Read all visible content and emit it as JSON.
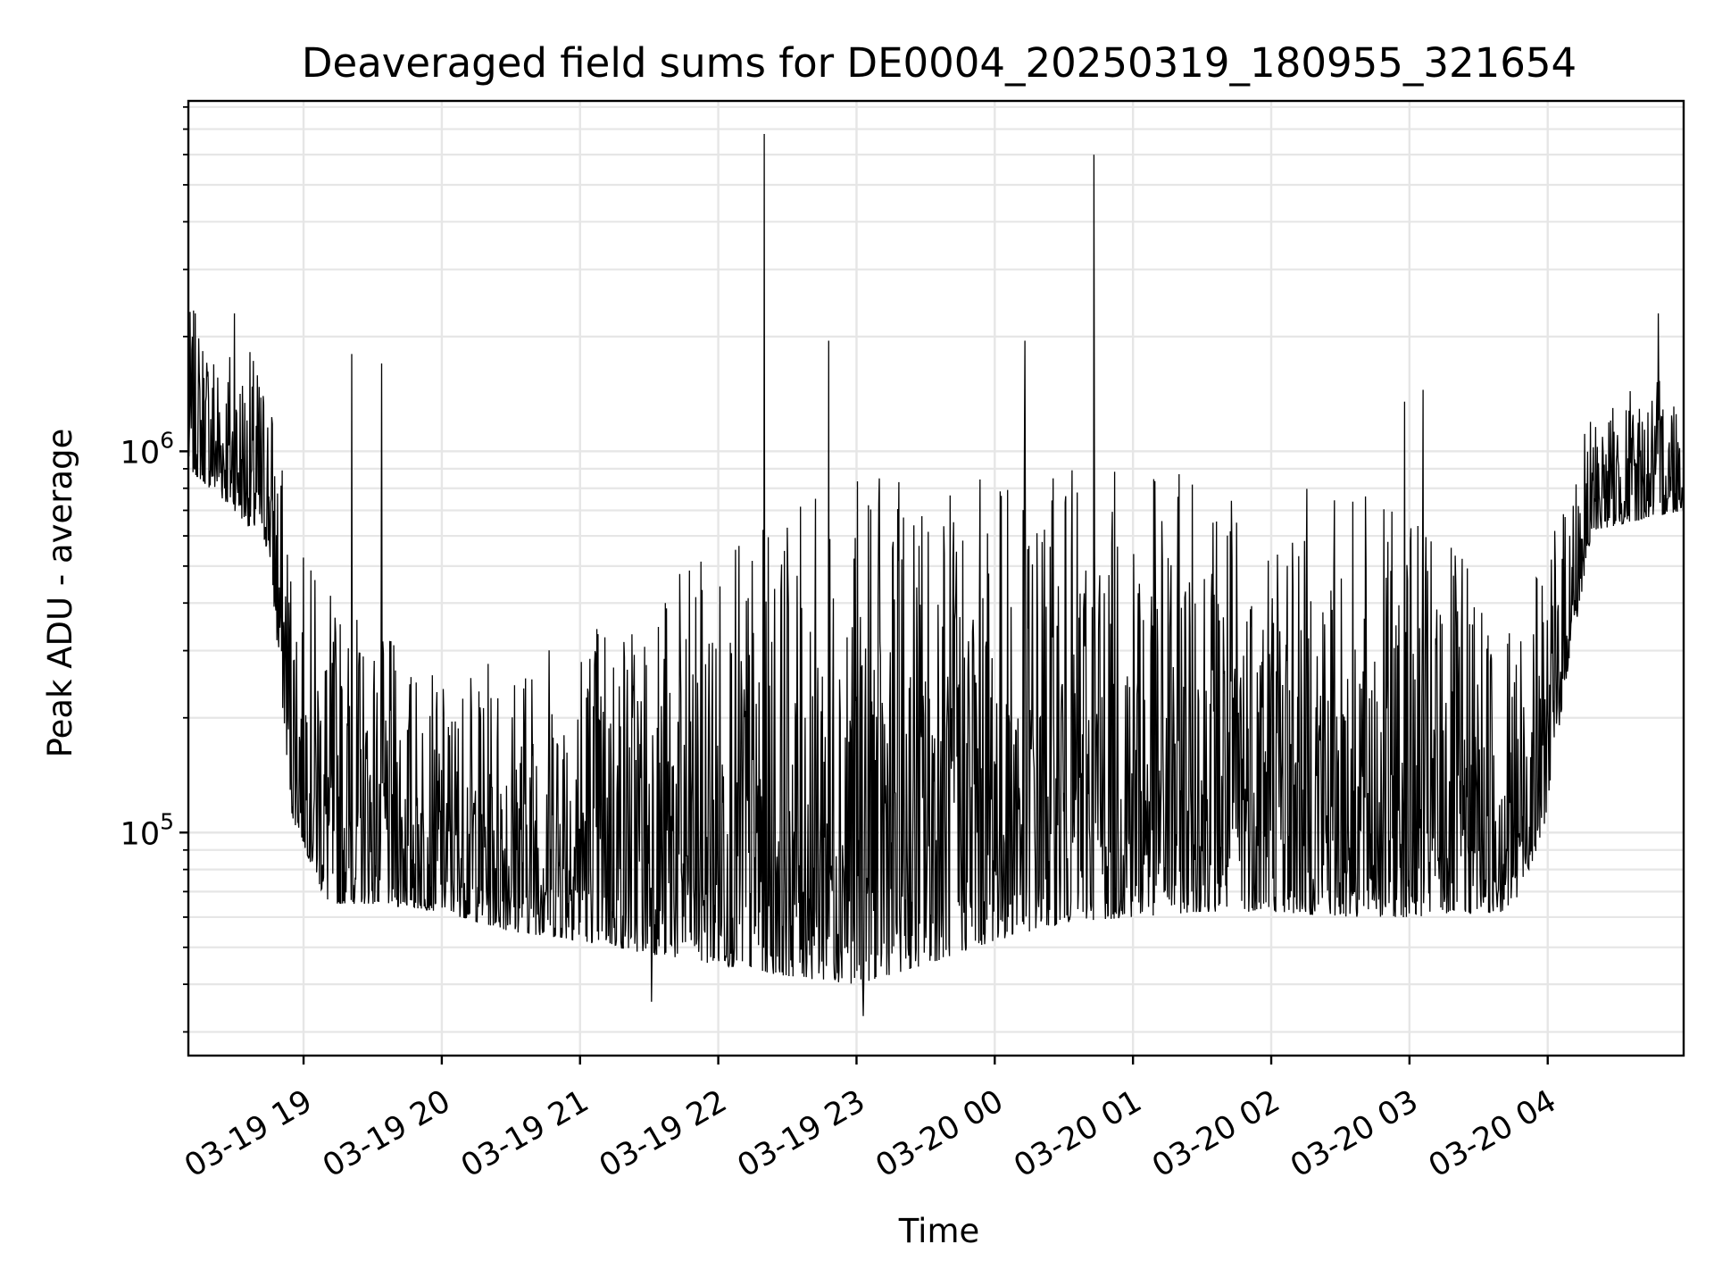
{
  "chart_data": {
    "type": "line",
    "title": "Deaveraged field sums for DE0004_20250319_180955_321654",
    "xlabel": "Time",
    "ylabel": "Peak ADU - average",
    "y_scale": "log",
    "ylim": [
      26000,
      8300000
    ],
    "xlim": [
      "2025-03-19 18:10",
      "2025-03-20 04:59"
    ],
    "grid": "both (major and minor)",
    "x_ticks": [
      {
        "t": "2025-03-19 19:00",
        "label": "03-19 19"
      },
      {
        "t": "2025-03-19 20:00",
        "label": "03-19 20"
      },
      {
        "t": "2025-03-19 21:00",
        "label": "03-19 21"
      },
      {
        "t": "2025-03-19 22:00",
        "label": "03-19 22"
      },
      {
        "t": "2025-03-19 23:00",
        "label": "03-19 23"
      },
      {
        "t": "2025-03-20 00:00",
        "label": "03-20 00"
      },
      {
        "t": "2025-03-20 01:00",
        "label": "03-20 01"
      },
      {
        "t": "2025-03-20 02:00",
        "label": "03-20 02"
      },
      {
        "t": "2025-03-20 03:00",
        "label": "03-20 03"
      },
      {
        "t": "2025-03-20 04:00",
        "label": "03-20 04"
      }
    ],
    "y_ticks": [
      {
        "value": 100000,
        "base": "10",
        "exp": "5"
      },
      {
        "value": 1000000,
        "base": "10",
        "exp": "6"
      }
    ],
    "series": [
      {
        "color": "#000000",
        "envelope": [
          {
            "t": "2025-03-19 18:10",
            "low": 900000,
            "high": 2400000
          },
          {
            "t": "2025-03-19 18:30",
            "low": 700000,
            "high": 2000000
          },
          {
            "t": "2025-03-19 18:45",
            "low": 550000,
            "high": 1700000
          },
          {
            "t": "2025-03-19 18:55",
            "low": 110000,
            "high": 600000
          },
          {
            "t": "2025-03-19 19:10",
            "low": 65000,
            "high": 450000
          },
          {
            "t": "2025-03-19 19:30",
            "low": 65000,
            "high": 350000
          },
          {
            "t": "2025-03-19 20:00",
            "low": 62000,
            "high": 250000
          },
          {
            "t": "2025-03-19 20:30",
            "low": 55000,
            "high": 300000
          },
          {
            "t": "2025-03-19 21:00",
            "low": 52000,
            "high": 400000
          },
          {
            "t": "2025-03-19 21:30",
            "low": 48000,
            "high": 450000
          },
          {
            "t": "2025-03-19 22:00",
            "low": 45000,
            "high": 550000
          },
          {
            "t": "2025-03-19 22:30",
            "low": 42000,
            "high": 700000
          },
          {
            "t": "2025-03-19 23:00",
            "low": 40000,
            "high": 850000
          },
          {
            "t": "2025-03-19 23:30",
            "low": 45000,
            "high": 850000
          },
          {
            "t": "2025-03-20 00:00",
            "low": 52000,
            "high": 900000
          },
          {
            "t": "2025-03-20 00:30",
            "low": 58000,
            "high": 900000
          },
          {
            "t": "2025-03-20 01:00",
            "low": 60000,
            "high": 880000
          },
          {
            "t": "2025-03-20 01:30",
            "low": 62000,
            "high": 880000
          },
          {
            "t": "2025-03-20 02:00",
            "low": 62000,
            "high": 850000
          },
          {
            "t": "2025-03-20 02:30",
            "low": 60000,
            "high": 800000
          },
          {
            "t": "2025-03-20 03:00",
            "low": 60000,
            "high": 700000
          },
          {
            "t": "2025-03-20 03:45",
            "low": 62000,
            "high": 400000
          },
          {
            "t": "2025-03-20 03:58",
            "low": 100000,
            "high": 500000
          },
          {
            "t": "2025-03-20 04:10",
            "low": 300000,
            "high": 900000
          },
          {
            "t": "2025-03-20 04:20",
            "low": 620000,
            "high": 1300000
          },
          {
            "t": "2025-03-20 04:59",
            "low": 700000,
            "high": 1700000
          }
        ],
        "spikes": [
          {
            "t": "2025-03-19 22:20",
            "value": 6800000
          },
          {
            "t": "2025-03-20 00:43",
            "value": 6000000
          },
          {
            "t": "2025-03-19 22:48",
            "value": 1950000
          },
          {
            "t": "2025-03-20 00:13",
            "value": 1950000
          },
          {
            "t": "2025-03-19 19:21",
            "value": 1800000
          },
          {
            "t": "2025-03-19 19:34",
            "value": 1700000
          },
          {
            "t": "2025-03-20 02:58",
            "value": 1350000
          },
          {
            "t": "2025-03-20 03:06",
            "value": 1450000
          },
          {
            "t": "2025-03-19 18:30",
            "value": 2300000
          },
          {
            "t": "2025-03-20 04:48",
            "value": 2300000
          },
          {
            "t": "2025-03-19 21:31",
            "value": 36000
          },
          {
            "t": "2025-03-19 23:03",
            "value": 33000
          }
        ]
      }
    ]
  }
}
